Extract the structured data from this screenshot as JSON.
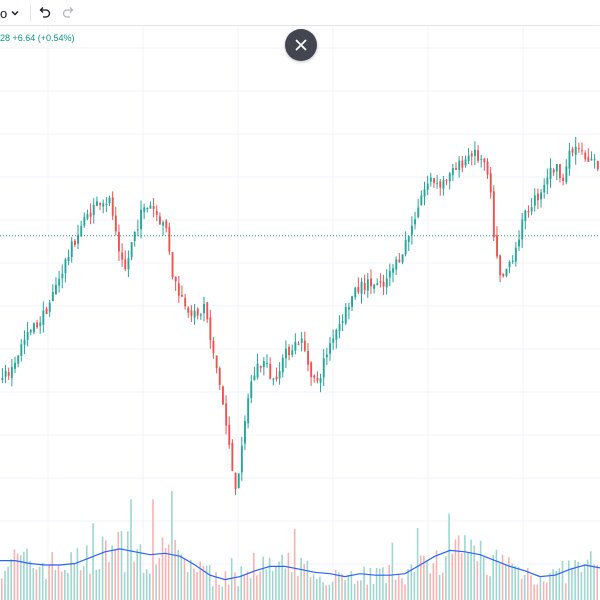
{
  "toolbar": {
    "partial_label": "o",
    "dropdown_icon": "chevron-down-icon",
    "undo_icon": "undo-icon",
    "redo_icon": "redo-icon",
    "redo_enabled": false
  },
  "header": {
    "price_change": "28  +6.64 (+0.54%)",
    "change_color": "#089981"
  },
  "overlay": {
    "close_icon": "close-icon"
  },
  "colors": {
    "up": "#26a69a",
    "down": "#ef5350",
    "volume_up": "#9fd6cf",
    "volume_down": "#f7b3b1",
    "volume_ma": "#2962ff",
    "price_line": "#089981",
    "grid": "#f0f3fa"
  },
  "chart_data": {
    "type": "candlestick",
    "title": "",
    "xlabel": "",
    "ylabel": "",
    "y_unit": "relative (0 = lowest low, 100 = highest high)",
    "ylim": [
      0,
      100
    ],
    "grid": true,
    "current_price_line": 70.5,
    "close_path": [
      [
        0,
        33
      ],
      [
        10,
        36
      ],
      [
        20,
        42
      ],
      [
        30,
        46
      ],
      [
        40,
        49
      ],
      [
        50,
        54
      ],
      [
        60,
        61
      ],
      [
        70,
        67
      ],
      [
        80,
        73
      ],
      [
        90,
        77
      ],
      [
        100,
        80
      ],
      [
        110,
        79
      ],
      [
        118,
        65
      ],
      [
        124,
        61
      ],
      [
        132,
        70
      ],
      [
        140,
        76
      ],
      [
        150,
        79
      ],
      [
        158,
        75
      ],
      [
        166,
        72
      ],
      [
        172,
        60
      ],
      [
        180,
        55
      ],
      [
        188,
        52
      ],
      [
        196,
        49
      ],
      [
        204,
        53
      ],
      [
        210,
        42
      ],
      [
        218,
        34
      ],
      [
        226,
        20
      ],
      [
        234,
        6
      ],
      [
        240,
        13
      ],
      [
        248,
        31
      ],
      [
        256,
        37
      ],
      [
        264,
        38
      ],
      [
        272,
        33
      ],
      [
        280,
        38
      ],
      [
        290,
        42
      ],
      [
        300,
        44
      ],
      [
        308,
        37
      ],
      [
        316,
        32
      ],
      [
        324,
        39
      ],
      [
        332,
        45
      ],
      [
        342,
        50
      ],
      [
        352,
        55
      ],
      [
        362,
        58
      ],
      [
        372,
        58
      ],
      [
        382,
        57
      ],
      [
        392,
        62
      ],
      [
        400,
        66
      ],
      [
        410,
        72
      ],
      [
        420,
        81
      ],
      [
        430,
        85
      ],
      [
        440,
        84
      ],
      [
        450,
        86
      ],
      [
        460,
        89
      ],
      [
        470,
        92
      ],
      [
        480,
        90
      ],
      [
        488,
        85
      ],
      [
        494,
        68
      ],
      [
        500,
        58
      ],
      [
        506,
        62
      ],
      [
        514,
        67
      ],
      [
        522,
        74
      ],
      [
        530,
        79
      ],
      [
        538,
        81
      ],
      [
        546,
        86
      ],
      [
        554,
        88
      ],
      [
        562,
        86
      ],
      [
        570,
        92
      ],
      [
        578,
        93
      ],
      [
        586,
        89
      ],
      [
        592,
        90
      ],
      [
        600,
        87
      ]
    ],
    "volume_ma_path": [
      [
        0,
        27
      ],
      [
        15,
        27
      ],
      [
        30,
        25
      ],
      [
        45,
        24
      ],
      [
        60,
        24
      ],
      [
        75,
        25
      ],
      [
        90,
        29
      ],
      [
        105,
        33
      ],
      [
        120,
        35
      ],
      [
        135,
        33
      ],
      [
        150,
        31
      ],
      [
        165,
        32
      ],
      [
        180,
        30
      ],
      [
        195,
        24
      ],
      [
        210,
        17
      ],
      [
        225,
        14
      ],
      [
        240,
        16
      ],
      [
        255,
        20
      ],
      [
        270,
        23
      ],
      [
        285,
        23
      ],
      [
        300,
        21
      ],
      [
        315,
        19
      ],
      [
        330,
        18
      ],
      [
        345,
        16
      ],
      [
        360,
        18
      ],
      [
        375,
        17
      ],
      [
        390,
        17
      ],
      [
        405,
        18
      ],
      [
        420,
        24
      ],
      [
        435,
        30
      ],
      [
        450,
        34
      ],
      [
        465,
        33
      ],
      [
        480,
        31
      ],
      [
        495,
        27
      ],
      [
        510,
        23
      ],
      [
        525,
        20
      ],
      [
        540,
        16
      ],
      [
        555,
        17
      ],
      [
        570,
        21
      ],
      [
        585,
        24
      ],
      [
        600,
        22
      ]
    ],
    "volume_ylim": [
      0,
      100
    ]
  }
}
